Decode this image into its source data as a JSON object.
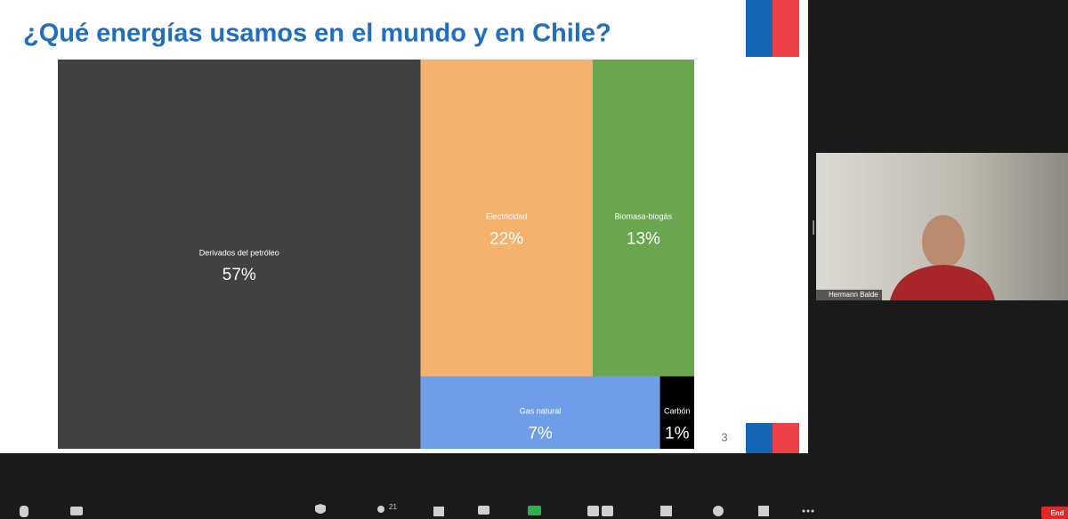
{
  "slide": {
    "title": "¿Qué energías usamos en el mundo y en Chile?",
    "page_number": 3
  },
  "chart_data": {
    "type": "treemap",
    "categories": [
      "Derivados del petróleo",
      "Electricidad",
      "Biomasa-biogás",
      "Gas natural",
      "Carbón"
    ],
    "values": [
      57,
      22,
      13,
      7,
      1
    ],
    "value_labels": [
      "57%",
      "22%",
      "13%",
      "7%",
      "1%"
    ],
    "colors": [
      "#414143",
      "#f5b26f",
      "#6aa64f",
      "#6f9de8",
      "#000000"
    ]
  },
  "video": {
    "participant_name": "Hermann Balde"
  },
  "toolbar": {
    "participants_count": 21,
    "end_button": "End"
  }
}
